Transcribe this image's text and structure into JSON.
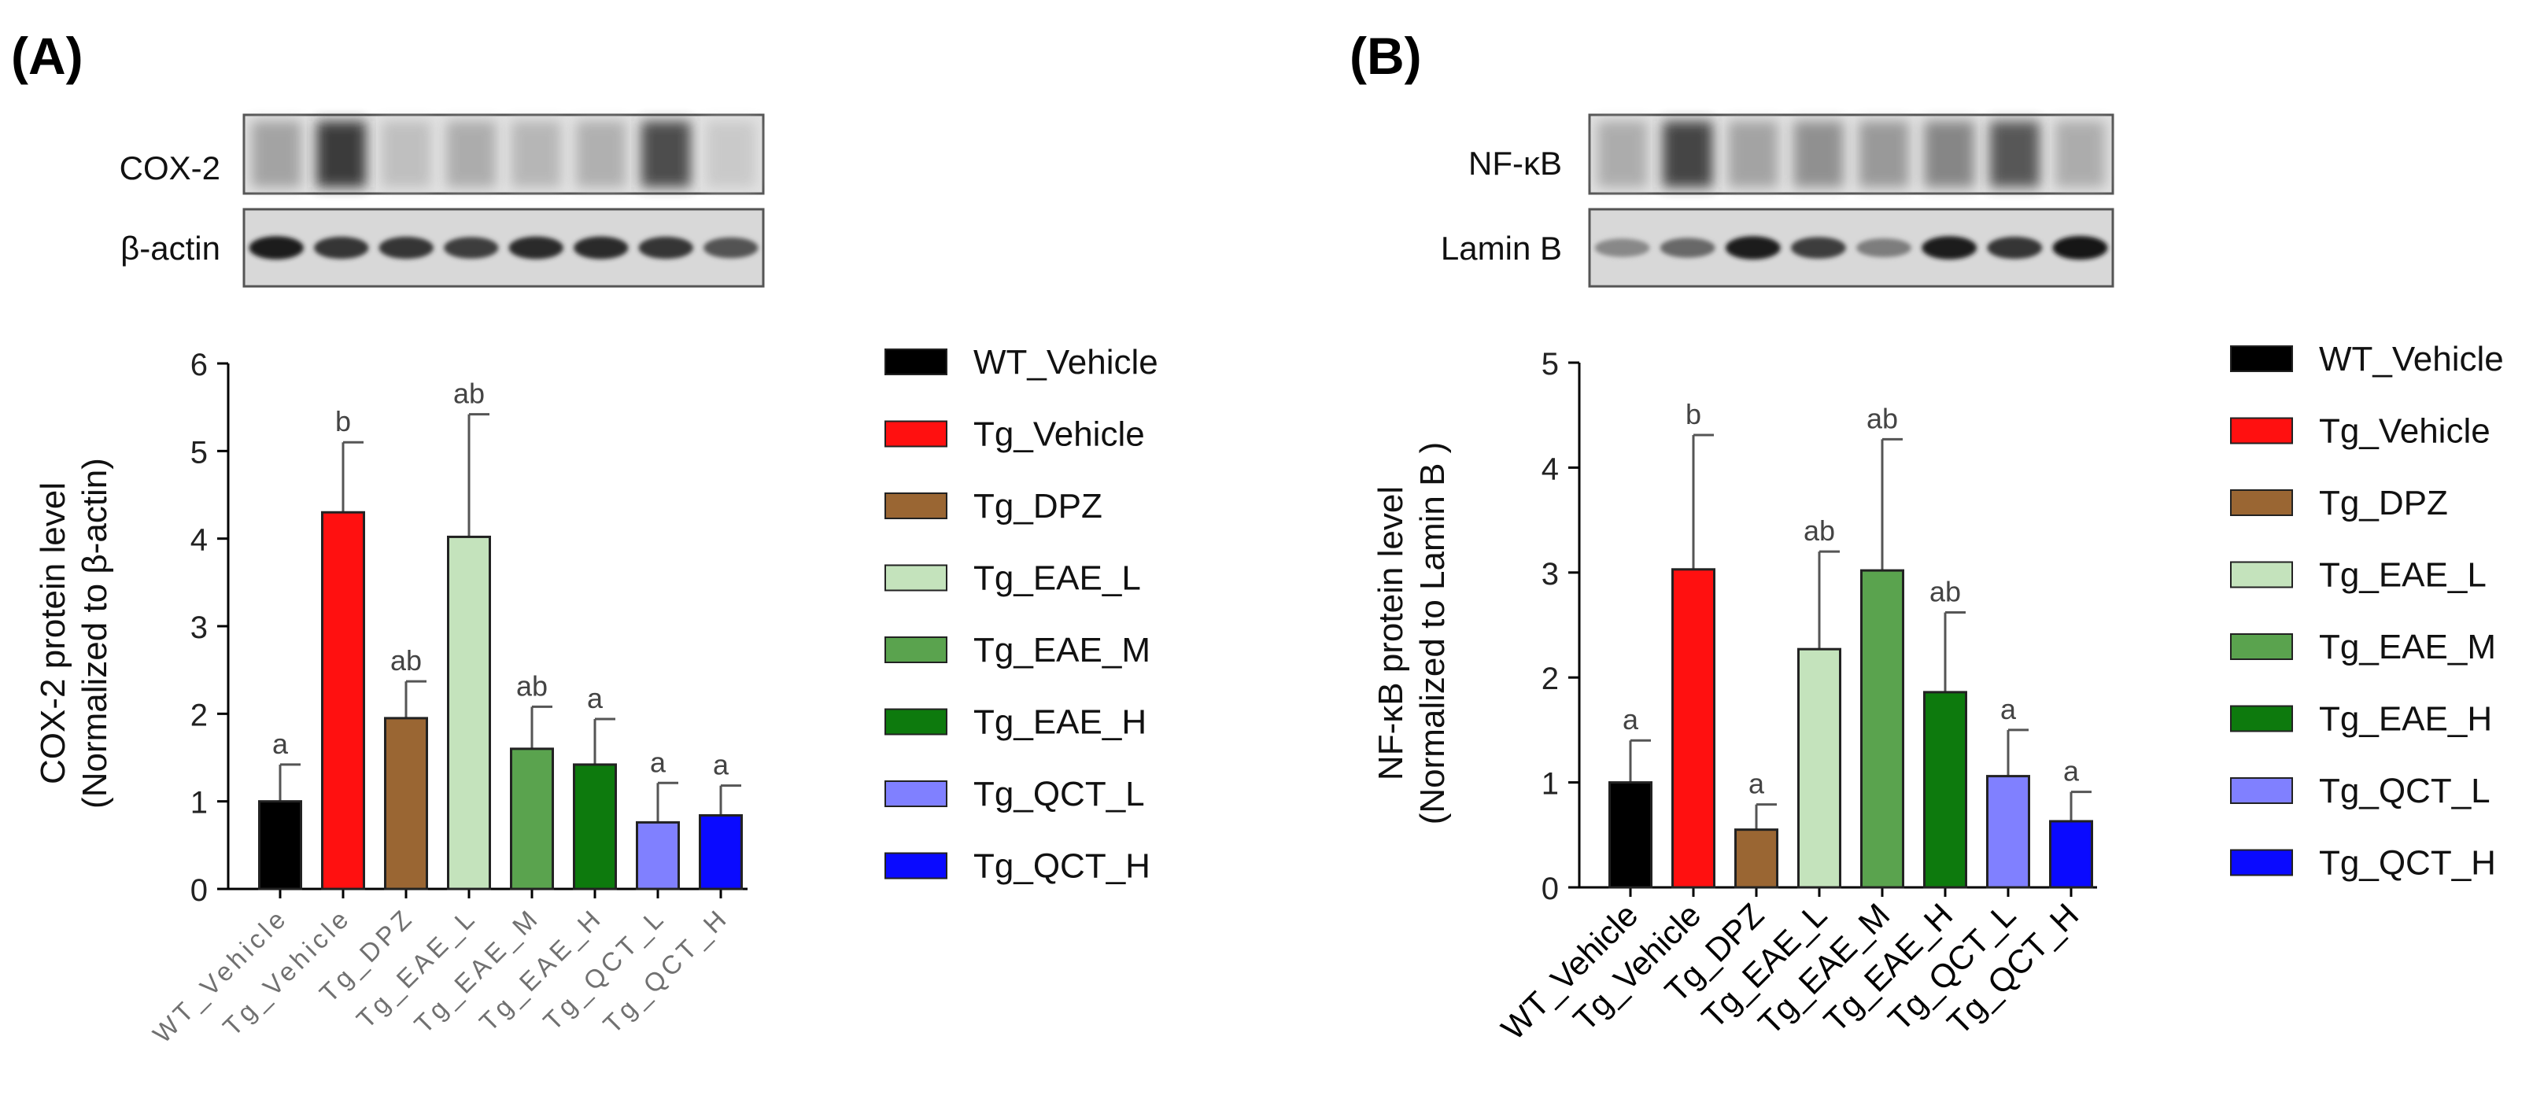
{
  "colors": {
    "WT_Vehicle": "#000000",
    "Tg_Vehicle": "#ff1010",
    "Tg_DPZ": "#9a6633",
    "Tg_EAE_L": "#c4e3bc",
    "Tg_EAE_M": "#5aa34e",
    "Tg_EAE_H": "#0d7a0d",
    "Tg_QCT_L": "#8080ff",
    "Tg_QCT_H": "#0a0aff"
  },
  "legend": [
    "WT_Vehicle",
    "Tg_Vehicle",
    "Tg_DPZ",
    "Tg_EAE_L",
    "Tg_EAE_M",
    "Tg_EAE_H",
    "Tg_QCT_L",
    "Tg_QCT_H"
  ],
  "panels": {
    "A": {
      "label": "(A)",
      "blots": [
        {
          "name": "COX-2",
          "style": "diffuse",
          "intensities": [
            0.35,
            0.9,
            0.2,
            0.3,
            0.25,
            0.28,
            0.8,
            0.15
          ]
        },
        {
          "name": "β-actin",
          "style": "band",
          "intensities": [
            0.95,
            0.85,
            0.85,
            0.8,
            0.9,
            0.9,
            0.85,
            0.7
          ]
        }
      ]
    },
    "B": {
      "label": "(B)",
      "blots": [
        {
          "name": "NF-κB",
          "style": "diffuse",
          "intensities": [
            0.3,
            0.85,
            0.35,
            0.45,
            0.4,
            0.5,
            0.75,
            0.3
          ]
        },
        {
          "name": "Lamin B",
          "style": "band",
          "intensities": [
            0.45,
            0.6,
            0.95,
            0.8,
            0.5,
            0.95,
            0.85,
            1.0
          ]
        }
      ]
    }
  },
  "chart_data": [
    {
      "type": "bar",
      "panel": "A",
      "categories": [
        "WT_Vehicle",
        "Tg_Vehicle",
        "Tg_DPZ",
        "Tg_EAE_L",
        "Tg_EAE_M",
        "Tg_EAE_H",
        "Tg_QCT_L",
        "Tg_QCT_H"
      ],
      "values": [
        1.0,
        4.3,
        1.95,
        4.02,
        1.6,
        1.42,
        0.76,
        0.84
      ],
      "errors": [
        0.42,
        0.8,
        0.42,
        1.4,
        0.48,
        0.52,
        0.45,
        0.34
      ],
      "significance": [
        "a",
        "b",
        "ab",
        "ab",
        "ab",
        "a",
        "a",
        "a"
      ],
      "title": "",
      "xlabel": "",
      "ylabel": [
        "COX-2 protein level",
        "(Normalized to β-actin)"
      ],
      "ylim": [
        0,
        6
      ],
      "yticks": [
        "0",
        "1",
        "2",
        "3",
        "4",
        "5",
        "6"
      ],
      "grid": false,
      "tick_label_rotation": "diagonal"
    },
    {
      "type": "bar",
      "panel": "B",
      "categories": [
        "WT_Vehicle",
        "Tg_Vehicle",
        "Tg_DPZ",
        "Tg_EAE_L",
        "Tg_EAE_M",
        "Tg_EAE_H",
        "Tg_QCT_L",
        "Tg_QCT_H"
      ],
      "values": [
        1.0,
        3.03,
        0.55,
        2.27,
        3.02,
        1.86,
        1.06,
        0.63
      ],
      "errors": [
        0.4,
        1.28,
        0.24,
        0.93,
        1.25,
        0.76,
        0.44,
        0.28
      ],
      "significance": [
        "a",
        "b",
        "a",
        "ab",
        "ab",
        "ab",
        "a",
        "a"
      ],
      "title": "",
      "xlabel": "",
      "ylabel": [
        "NF-κB protein level",
        "(Normalized to Lamin B )"
      ],
      "ylim": [
        0,
        5
      ],
      "yticks": [
        "0",
        "1",
        "2",
        "3",
        "4",
        "5"
      ],
      "grid": false,
      "tick_label_rotation": "diagonal"
    }
  ]
}
